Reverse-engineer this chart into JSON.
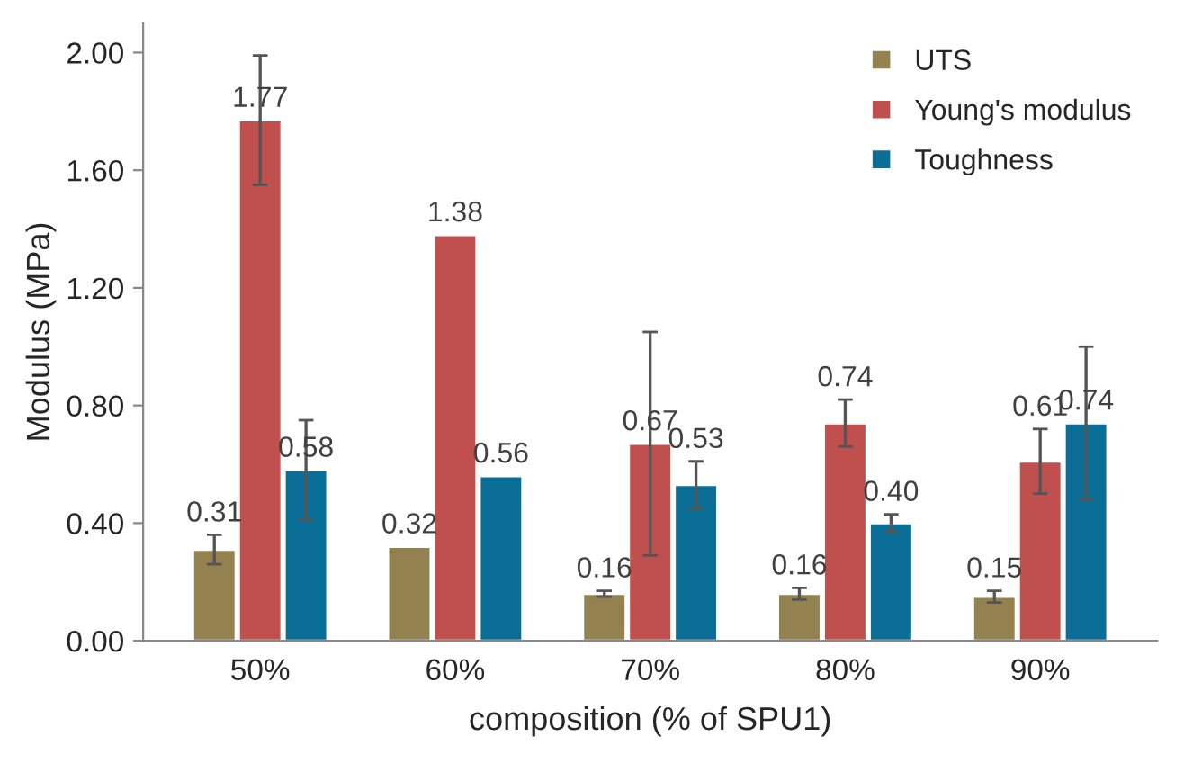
{
  "chart_data": {
    "type": "bar",
    "xlabel": "composition (% of SPU1)",
    "ylabel": "Modulus (MPa)",
    "categories": [
      "50%",
      "60%",
      "70%",
      "80%",
      "90%"
    ],
    "series": [
      {
        "name": "UTS",
        "color": "#938150",
        "values": [
          0.31,
          0.32,
          0.16,
          0.16,
          0.15
        ],
        "value_labels": [
          "0.31",
          "0.32",
          "0.16",
          "0.16",
          "0.15"
        ],
        "errors": [
          0.05,
          null,
          0.01,
          0.02,
          0.02
        ]
      },
      {
        "name": "Young's modulus",
        "color": "#c0504d",
        "values": [
          1.77,
          1.38,
          0.67,
          0.74,
          0.61
        ],
        "value_labels": [
          "1.77",
          "1.38",
          "0.67",
          "0.74",
          "0.61"
        ],
        "errors": [
          0.22,
          null,
          0.38,
          0.08,
          0.11
        ]
      },
      {
        "name": "Toughness",
        "color": "#0a6e96",
        "values": [
          0.58,
          0.56,
          0.53,
          0.4,
          0.74
        ],
        "value_labels": [
          "0.58",
          "0.56",
          "0.53",
          "0.40",
          "0.74"
        ],
        "errors": [
          0.17,
          null,
          0.08,
          0.03,
          0.26
        ]
      }
    ],
    "ylim": [
      0,
      2.1
    ],
    "yticks": [
      {
        "value": 0,
        "label": "0.00"
      },
      {
        "value": 0.4,
        "label": "0.40"
      },
      {
        "value": 0.8,
        "label": "0.80"
      },
      {
        "value": 1.2,
        "label": "1.20"
      },
      {
        "value": 1.6,
        "label": "1.60"
      },
      {
        "value": 2.0,
        "label": "2.00"
      }
    ],
    "legend": "top right",
    "grid": false
  }
}
